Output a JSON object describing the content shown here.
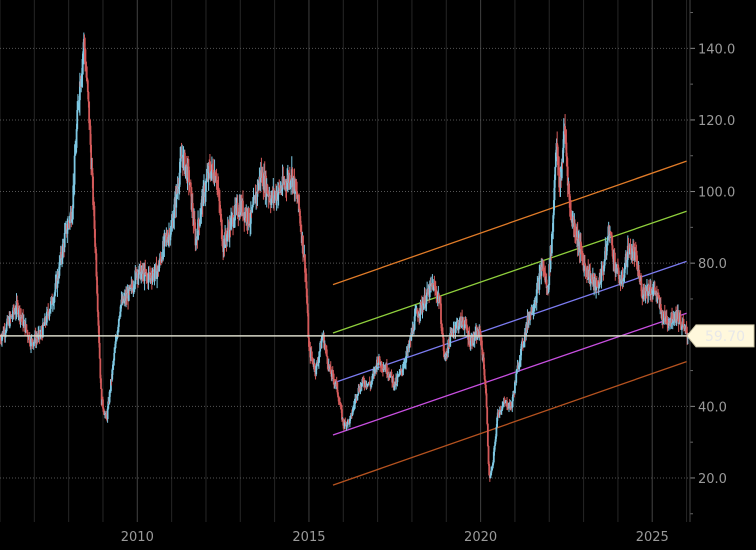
{
  "chart_data": {
    "type": "candlestick",
    "x_range": [
      2006.0,
      2026.1
    ],
    "y_range": [
      7.7,
      153.5
    ],
    "x_ticks": [
      {
        "value": 2010,
        "label": "2010"
      },
      {
        "value": 2015,
        "label": "2015"
      },
      {
        "value": 2020,
        "label": "2020"
      },
      {
        "value": 2025,
        "label": "2025"
      }
    ],
    "y_ticks": [
      {
        "value": 140,
        "label": "140.0"
      },
      {
        "value": 120,
        "label": "120.0"
      },
      {
        "value": 100,
        "label": "100.0"
      },
      {
        "value": 80,
        "label": "80.0"
      },
      {
        "value": 40,
        "label": "40.0"
      },
      {
        "value": 20,
        "label": "20.0"
      }
    ],
    "last_price": {
      "value": 59.7,
      "label": "59.70"
    },
    "price_path": [
      [
        2006.0,
        59
      ],
      [
        2006.5,
        68
      ],
      [
        2006.9,
        58
      ],
      [
        2007.2,
        60
      ],
      [
        2007.6,
        72
      ],
      [
        2007.9,
        88
      ],
      [
        2008.1,
        95
      ],
      [
        2008.3,
        128
      ],
      [
        2008.45,
        142
      ],
      [
        2008.6,
        120
      ],
      [
        2008.8,
        80
      ],
      [
        2008.95,
        42
      ],
      [
        2009.1,
        36
      ],
      [
        2009.3,
        52
      ],
      [
        2009.5,
        68
      ],
      [
        2009.8,
        72
      ],
      [
        2010.0,
        78
      ],
      [
        2010.3,
        76
      ],
      [
        2010.6,
        78
      ],
      [
        2010.8,
        86
      ],
      [
        2011.0,
        90
      ],
      [
        2011.3,
        110
      ],
      [
        2011.5,
        104
      ],
      [
        2011.7,
        86
      ],
      [
        2011.9,
        98
      ],
      [
        2012.1,
        106
      ],
      [
        2012.3,
        105
      ],
      [
        2012.5,
        85
      ],
      [
        2012.8,
        93
      ],
      [
        2013.0,
        96
      ],
      [
        2013.3,
        92
      ],
      [
        2013.6,
        105
      ],
      [
        2013.9,
        98
      ],
      [
        2014.2,
        101
      ],
      [
        2014.5,
        105
      ],
      [
        2014.7,
        96
      ],
      [
        2014.9,
        78
      ],
      [
        2015.0,
        56
      ],
      [
        2015.2,
        50
      ],
      [
        2015.4,
        60
      ],
      [
        2015.6,
        50
      ],
      [
        2015.8,
        46
      ],
      [
        2016.0,
        35
      ],
      [
        2016.2,
        36
      ],
      [
        2016.4,
        44
      ],
      [
        2016.6,
        47
      ],
      [
        2016.8,
        46
      ],
      [
        2017.0,
        53
      ],
      [
        2017.3,
        50
      ],
      [
        2017.5,
        46
      ],
      [
        2017.7,
        50
      ],
      [
        2017.9,
        56
      ],
      [
        2018.1,
        65
      ],
      [
        2018.4,
        70
      ],
      [
        2018.6,
        74
      ],
      [
        2018.8,
        70
      ],
      [
        2018.95,
        53
      ],
      [
        2019.2,
        62
      ],
      [
        2019.5,
        64
      ],
      [
        2019.7,
        58
      ],
      [
        2019.9,
        60
      ],
      [
        2020.0,
        60
      ],
      [
        2020.15,
        45
      ],
      [
        2020.25,
        20
      ],
      [
        2020.35,
        23
      ],
      [
        2020.5,
        38
      ],
      [
        2020.7,
        41
      ],
      [
        2020.9,
        40
      ],
      [
        2021.1,
        52
      ],
      [
        2021.4,
        65
      ],
      [
        2021.6,
        70
      ],
      [
        2021.8,
        80
      ],
      [
        2021.95,
        72
      ],
      [
        2022.1,
        90
      ],
      [
        2022.2,
        115
      ],
      [
        2022.3,
        100
      ],
      [
        2022.45,
        118
      ],
      [
        2022.6,
        95
      ],
      [
        2022.8,
        88
      ],
      [
        2023.0,
        80
      ],
      [
        2023.2,
        76
      ],
      [
        2023.4,
        73
      ],
      [
        2023.6,
        80
      ],
      [
        2023.75,
        90
      ],
      [
        2023.9,
        80
      ],
      [
        2024.1,
        74
      ],
      [
        2024.3,
        84
      ],
      [
        2024.5,
        82
      ],
      [
        2024.7,
        72
      ],
      [
        2024.9,
        73
      ],
      [
        2025.1,
        72
      ],
      [
        2025.3,
        65
      ],
      [
        2025.5,
        64
      ],
      [
        2025.7,
        66
      ],
      [
        2025.9,
        62
      ],
      [
        2026.05,
        59.7
      ]
    ],
    "trend_channel": {
      "x_start": 2015.7,
      "x_end": 2026.0,
      "lines": [
        {
          "color": "#e07b28",
          "y_start": 74.0,
          "y_end": 108.5
        },
        {
          "color": "#8fcf3c",
          "y_start": 60.5,
          "y_end": 94.5
        },
        {
          "color": "#7b7bf0",
          "y_start": 46.5,
          "y_end": 80.5
        },
        {
          "color": "#c84fe0",
          "y_start": 32.0,
          "y_end": 66.0
        },
        {
          "color": "#b5521f",
          "y_start": 18.0,
          "y_end": 52.5
        }
      ]
    },
    "colors": {
      "background": "#000000",
      "up": "#7ec8e3",
      "down": "#d45a5a",
      "grid": "#3a3a3a",
      "price_line": "#d8d8c8",
      "label_bg": "#fff8dc",
      "label_text": "#111111"
    },
    "grid": true
  }
}
